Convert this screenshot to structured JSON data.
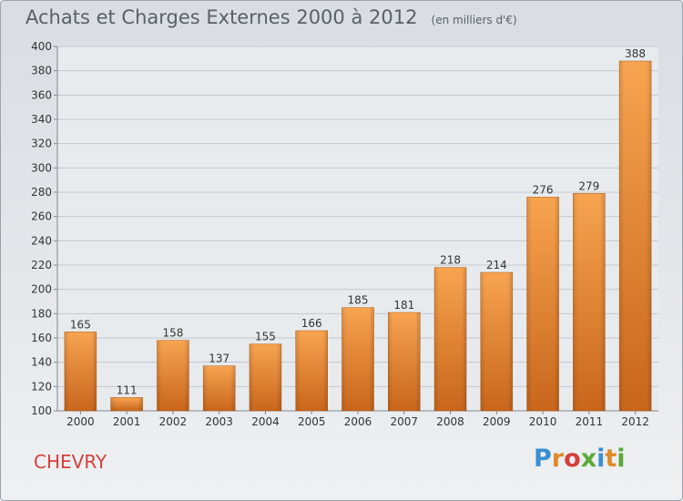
{
  "header": {
    "title": "Achats et Charges Externes 2000 à 2012",
    "unit": "(en milliers d'€)"
  },
  "place_name": "CHEVRY",
  "logo": {
    "text": "Proxiti",
    "colors": [
      "#3a8fd4",
      "#e08a2a",
      "#d4403a",
      "#5aa83a"
    ]
  },
  "chart_data": {
    "type": "bar",
    "title": "Achats et Charges Externes 2000 à 2012",
    "subtitle": "(en milliers d'€)",
    "xlabel": "",
    "ylabel": "",
    "categories": [
      "2000",
      "2001",
      "2002",
      "2003",
      "2004",
      "2005",
      "2006",
      "2007",
      "2008",
      "2009",
      "2010",
      "2011",
      "2012"
    ],
    "values": [
      165,
      111,
      158,
      137,
      155,
      166,
      185,
      181,
      218,
      214,
      276,
      279,
      388
    ],
    "ylim": [
      100,
      400
    ],
    "yticks": [
      100,
      120,
      140,
      160,
      180,
      200,
      220,
      240,
      260,
      280,
      300,
      320,
      340,
      360,
      380,
      400
    ],
    "grid": true,
    "bar_color": "#f0923a",
    "axis_color": "#9aa3ad"
  }
}
